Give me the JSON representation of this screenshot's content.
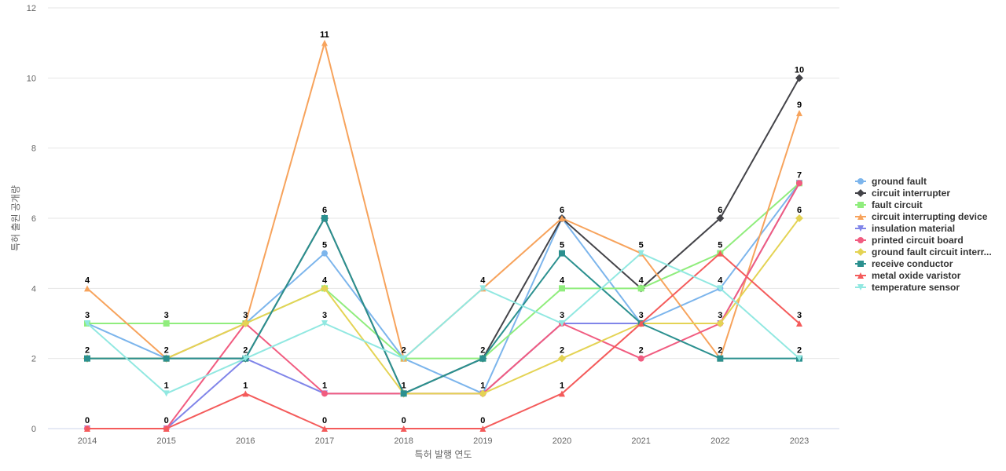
{
  "chart_data": {
    "type": "line",
    "title": "",
    "xlabel": "특허 발행 연도",
    "ylabel": "특허 출원 공개량",
    "ylim": [
      0,
      12
    ],
    "yticks": [
      "0",
      "2",
      "4",
      "6",
      "8",
      "10",
      "12"
    ],
    "x": [
      "2014",
      "2015",
      "2016",
      "2017",
      "2018",
      "2019",
      "2020",
      "2021",
      "2022",
      "2023"
    ],
    "grid": "horizontal",
    "legend_position": "right",
    "series": [
      {
        "name": "ground fault",
        "color": "#7cb5ec",
        "marker": "circle",
        "values": [
          3,
          2,
          3,
          5,
          2,
          1,
          6,
          3,
          4,
          7
        ]
      },
      {
        "name": "circuit interrupter",
        "color": "#434348",
        "marker": "diamond",
        "values": [
          2,
          2,
          2,
          6,
          1,
          2,
          6,
          4,
          6,
          10
        ]
      },
      {
        "name": "fault circuit",
        "color": "#90ed7d",
        "marker": "square",
        "values": [
          3,
          3,
          3,
          4,
          2,
          2,
          4,
          4,
          5,
          7
        ]
      },
      {
        "name": "circuit interrupting device",
        "color": "#f7a35c",
        "marker": "triangle",
        "values": [
          4,
          2,
          3,
          11,
          2,
          4,
          6,
          5,
          2,
          9
        ]
      },
      {
        "name": "insulation material",
        "color": "#8085e9",
        "marker": "triangle-down",
        "values": [
          0,
          0,
          2,
          1,
          1,
          1,
          3,
          3,
          3,
          7
        ]
      },
      {
        "name": "printed circuit board",
        "color": "#f15c80",
        "marker": "circle",
        "values": [
          0,
          0,
          3,
          1,
          1,
          1,
          3,
          2,
          3,
          7
        ]
      },
      {
        "name": "ground fault circuit interr...",
        "color": "#e4d354",
        "marker": "diamond",
        "values": [
          2,
          2,
          3,
          4,
          1,
          1,
          2,
          3,
          3,
          6
        ]
      },
      {
        "name": "receive conductor",
        "color": "#2b908f",
        "marker": "square",
        "values": [
          2,
          2,
          2,
          6,
          1,
          2,
          5,
          3,
          2,
          2
        ]
      },
      {
        "name": "metal oxide varistor",
        "color": "#f45b5b",
        "marker": "triangle",
        "values": [
          0,
          0,
          1,
          0,
          0,
          0,
          1,
          3,
          5,
          3
        ]
      },
      {
        "name": "temperature sensor",
        "color": "#91e8e1",
        "marker": "triangle-down",
        "values": [
          3,
          1,
          2,
          3,
          2,
          4,
          3,
          5,
          4,
          2
        ]
      }
    ],
    "point_labels": [
      {
        "series": 3,
        "x": 0,
        "text": "4"
      },
      {
        "series": 0,
        "x": 0,
        "text": "3"
      },
      {
        "series": 1,
        "x": 0,
        "text": "2"
      },
      {
        "series": 4,
        "x": 0,
        "text": "0"
      },
      {
        "series": 2,
        "x": 1,
        "text": "3"
      },
      {
        "series": 1,
        "x": 1,
        "text": "2"
      },
      {
        "series": 9,
        "x": 1,
        "text": "1"
      },
      {
        "series": 4,
        "x": 1,
        "text": "0"
      },
      {
        "series": 0,
        "x": 2,
        "text": "3"
      },
      {
        "series": 1,
        "x": 2,
        "text": "2"
      },
      {
        "series": 8,
        "x": 2,
        "text": "1"
      },
      {
        "series": 3,
        "x": 3,
        "text": "11"
      },
      {
        "series": 7,
        "x": 3,
        "text": "6"
      },
      {
        "series": 0,
        "x": 3,
        "text": "5"
      },
      {
        "series": 2,
        "x": 3,
        "text": "4"
      },
      {
        "series": 9,
        "x": 3,
        "text": "3"
      },
      {
        "series": 4,
        "x": 3,
        "text": "1"
      },
      {
        "series": 8,
        "x": 3,
        "text": "0"
      },
      {
        "series": 0,
        "x": 4,
        "text": "2"
      },
      {
        "series": 1,
        "x": 4,
        "text": "1"
      },
      {
        "series": 8,
        "x": 4,
        "text": "0"
      },
      {
        "series": 3,
        "x": 5,
        "text": "4"
      },
      {
        "series": 1,
        "x": 5,
        "text": "2"
      },
      {
        "series": 0,
        "x": 5,
        "text": "1"
      },
      {
        "series": 8,
        "x": 5,
        "text": "0"
      },
      {
        "series": 1,
        "x": 6,
        "text": "6"
      },
      {
        "series": 7,
        "x": 6,
        "text": "5"
      },
      {
        "series": 2,
        "x": 6,
        "text": "4"
      },
      {
        "series": 4,
        "x": 6,
        "text": "3"
      },
      {
        "series": 6,
        "x": 6,
        "text": "2"
      },
      {
        "series": 8,
        "x": 6,
        "text": "1"
      },
      {
        "series": 9,
        "x": 7,
        "text": "5"
      },
      {
        "series": 1,
        "x": 7,
        "text": "4"
      },
      {
        "series": 0,
        "x": 7,
        "text": "3"
      },
      {
        "series": 5,
        "x": 7,
        "text": "2"
      },
      {
        "series": 1,
        "x": 8,
        "text": "6"
      },
      {
        "series": 2,
        "x": 8,
        "text": "5"
      },
      {
        "series": 0,
        "x": 8,
        "text": "4"
      },
      {
        "series": 4,
        "x": 8,
        "text": "3"
      },
      {
        "series": 3,
        "x": 8,
        "text": "2"
      },
      {
        "series": 1,
        "x": 9,
        "text": "10"
      },
      {
        "series": 3,
        "x": 9,
        "text": "9"
      },
      {
        "series": 0,
        "x": 9,
        "text": "7"
      },
      {
        "series": 6,
        "x": 9,
        "text": "6"
      },
      {
        "series": 8,
        "x": 9,
        "text": "3"
      },
      {
        "series": 7,
        "x": 9,
        "text": "2"
      }
    ]
  }
}
